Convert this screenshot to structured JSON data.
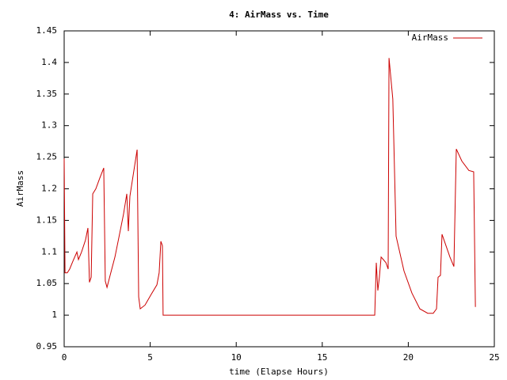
{
  "chart_data": {
    "type": "line",
    "title": "4: AirMass vs. Time",
    "x_label": "time (Elapse Hours)",
    "y_label": "AirMass",
    "x": [
      0,
      0.05,
      0.18,
      0.32,
      0.5,
      0.74,
      0.83,
      1.01,
      1.24,
      1.38,
      1.47,
      1.57,
      1.66,
      1.84,
      2.07,
      2.3,
      2.39,
      2.49,
      2.67,
      2.95,
      3.18,
      3.45,
      3.64,
      3.73,
      3.82,
      4.24,
      4.33,
      4.42,
      4.7,
      5.06,
      5.39,
      5.52,
      5.62,
      5.71,
      5.75,
      18.05,
      18.14,
      18.23,
      18.32,
      18.42,
      18.55,
      18.7,
      18.83,
      18.88,
      19.1,
      19.29,
      19.75,
      20.21,
      20.67,
      21.13,
      21.45,
      21.64,
      21.73,
      21.87,
      21.96,
      22.42,
      22.65,
      22.79,
      23.11,
      23.52,
      23.8,
      23.9
    ],
    "series": [
      {
        "name": "AirMass",
        "color": "#cc0000",
        "values": [
          1.248,
          1.067,
          1.067,
          1.073,
          1.085,
          1.1,
          1.088,
          1.1,
          1.119,
          1.138,
          1.052,
          1.06,
          1.192,
          1.2,
          1.217,
          1.233,
          1.054,
          1.044,
          1.063,
          1.092,
          1.123,
          1.16,
          1.192,
          1.133,
          1.188,
          1.262,
          1.029,
          1.01,
          1.016,
          1.033,
          1.048,
          1.067,
          1.117,
          1.11,
          1.0,
          1.0,
          1.083,
          1.039,
          1.06,
          1.092,
          1.088,
          1.083,
          1.073,
          1.407,
          1.342,
          1.125,
          1.07,
          1.035,
          1.01,
          1.003,
          1.003,
          1.01,
          1.06,
          1.063,
          1.128,
          1.092,
          1.077,
          1.263,
          1.244,
          1.229,
          1.227,
          1.013
        ]
      }
    ],
    "xlim": [
      0,
      25
    ],
    "xticks": [
      0,
      5,
      10,
      15,
      20,
      25
    ],
    "ylim": [
      0.95,
      1.45
    ],
    "yticks": [
      0.95,
      1,
      1.05,
      1.1,
      1.15,
      1.2,
      1.25,
      1.3,
      1.35,
      1.4,
      1.45
    ],
    "grid": false,
    "legend": "top-right"
  }
}
